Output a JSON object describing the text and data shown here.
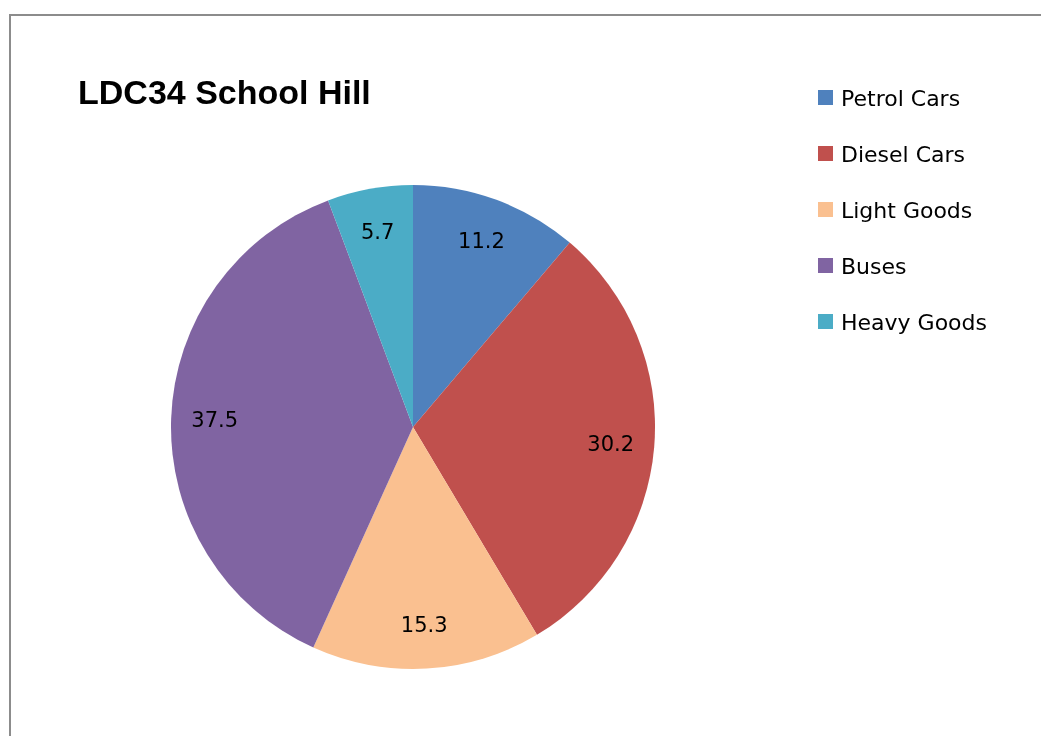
{
  "chart_data": {
    "type": "pie",
    "title": "LDC34 School Hill",
    "categories": [
      "Petrol Cars",
      "Diesel Cars",
      "Light Goods",
      "Buses",
      "Heavy Goods"
    ],
    "values": [
      11.2,
      30.2,
      15.3,
      37.5,
      5.7
    ],
    "colors": [
      "#4f81bd",
      "#c0504d",
      "#fac090",
      "#8064a2",
      "#4bacc6"
    ],
    "data_labels": true,
    "legend": "right"
  }
}
